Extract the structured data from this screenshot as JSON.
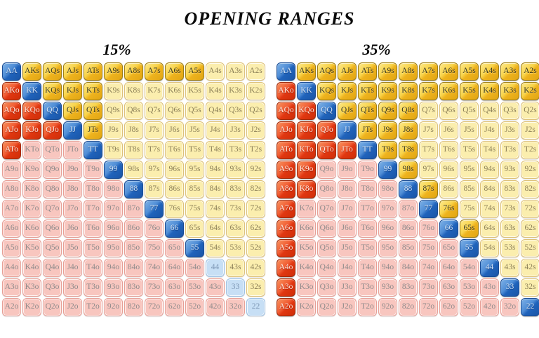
{
  "page": {
    "title": "OPENING RANGES"
  },
  "colors": {
    "pair_in": "#2b6cbf",
    "suited_in": "#f2c430",
    "offsuit_in": "#e33d14",
    "pair_out": "#c7dff5",
    "suited_out": "#fbeeae",
    "offsuit_out": "#f8c6bf",
    "title_text": "#0a0a0a",
    "background": "#ffffff"
  },
  "chart_data": {
    "type": "heatmap",
    "title": "OPENING RANGES",
    "rank_order": [
      "A",
      "K",
      "Q",
      "J",
      "T",
      "9",
      "8",
      "7",
      "6",
      "5",
      "4",
      "3",
      "2"
    ],
    "cell_states_legend": {
      "P": "pocket pair, in opening range (blue)",
      "S": "suited hand, in opening range (gold)",
      "O": "offsuit hand, in opening range (red)",
      "p": "pocket pair, not in range (pale blue)",
      "s": "suited hand, not in range (pale yellow)",
      "o": "offsuit hand, not in range (pale pink)"
    },
    "hand_labels": [
      [
        "AA",
        "AKs",
        "AQs",
        "AJs",
        "ATs",
        "A9s",
        "A8s",
        "A7s",
        "A6s",
        "A5s",
        "A4s",
        "A3s",
        "A2s"
      ],
      [
        "AKo",
        "KK",
        "KQs",
        "KJs",
        "KTs",
        "K9s",
        "K8s",
        "K7s",
        "K6s",
        "K5s",
        "K4s",
        "K3s",
        "K2s"
      ],
      [
        "AQo",
        "KQo",
        "QQ",
        "QJs",
        "QTs",
        "Q9s",
        "Q8s",
        "Q7s",
        "Q6s",
        "Q5s",
        "Q4s",
        "Q3s",
        "Q2s"
      ],
      [
        "AJo",
        "KJo",
        "QJo",
        "JJ",
        "JTs",
        "J9s",
        "J8s",
        "J7s",
        "J6s",
        "J5s",
        "J4s",
        "J3s",
        "J2s"
      ],
      [
        "ATo",
        "KTo",
        "QTo",
        "JTo",
        "TT",
        "T9s",
        "T8s",
        "T7s",
        "T6s",
        "T5s",
        "T4s",
        "T3s",
        "T2s"
      ],
      [
        "A9o",
        "K9o",
        "Q9o",
        "J9o",
        "T9o",
        "99",
        "98s",
        "97s",
        "96s",
        "95s",
        "94s",
        "93s",
        "92s"
      ],
      [
        "A8o",
        "K8o",
        "Q8o",
        "J8o",
        "T8o",
        "98o",
        "88",
        "87s",
        "86s",
        "85s",
        "84s",
        "83s",
        "82s"
      ],
      [
        "A7o",
        "K7o",
        "Q7o",
        "J7o",
        "T7o",
        "97o",
        "87o",
        "77",
        "76s",
        "75s",
        "74s",
        "73s",
        "72s"
      ],
      [
        "A6o",
        "K6o",
        "Q6o",
        "J6o",
        "T6o",
        "96o",
        "86o",
        "76o",
        "66",
        "65s",
        "64s",
        "63s",
        "62s"
      ],
      [
        "A5o",
        "K5o",
        "Q5o",
        "J5o",
        "T5o",
        "95o",
        "85o",
        "75o",
        "65o",
        "55",
        "54s",
        "53s",
        "52s"
      ],
      [
        "A4o",
        "K4o",
        "Q4o",
        "J4o",
        "T4o",
        "94o",
        "84o",
        "74o",
        "64o",
        "54o",
        "44",
        "43s",
        "42s"
      ],
      [
        "A3o",
        "K3o",
        "Q3o",
        "J3o",
        "T3o",
        "93o",
        "83o",
        "73o",
        "63o",
        "53o",
        "43o",
        "33",
        "32s"
      ],
      [
        "A2o",
        "K2o",
        "Q2o",
        "J2o",
        "T2o",
        "92o",
        "82o",
        "72o",
        "62o",
        "52o",
        "42o",
        "32o",
        "22"
      ]
    ],
    "grids": [
      {
        "title": "15%",
        "states": [
          "PSSSSSSSSSsss",
          "OPSSSssssssss",
          "OOPSSssssssss",
          "OOOPSssssssss",
          "OoooPssssssss",
          "oooooPsssssss",
          "ooooooPssssss",
          "oooooooPsssss",
          "ooooooooPssss",
          "oooooooooPsss",
          "oooooooooopss",
          "ooooooooooops",
          "oooooooooooop"
        ]
      },
      {
        "title": "35%",
        "states": [
          "PSSSSSSSSSSSS",
          "OPSSSSSSSSSSS",
          "OOPSSSSssssss",
          "OOOPSSSssssss",
          "OOOOPSSssssss",
          "OOoooPSssssss",
          "OOooooPSsssss",
          "OooooooPSssss",
          "OoooooooPSsss",
          "OooooooooPsss",
          "OoooooooooPss",
          "OooooooooooPs",
          "OoooooooooooP"
        ]
      }
    ]
  }
}
